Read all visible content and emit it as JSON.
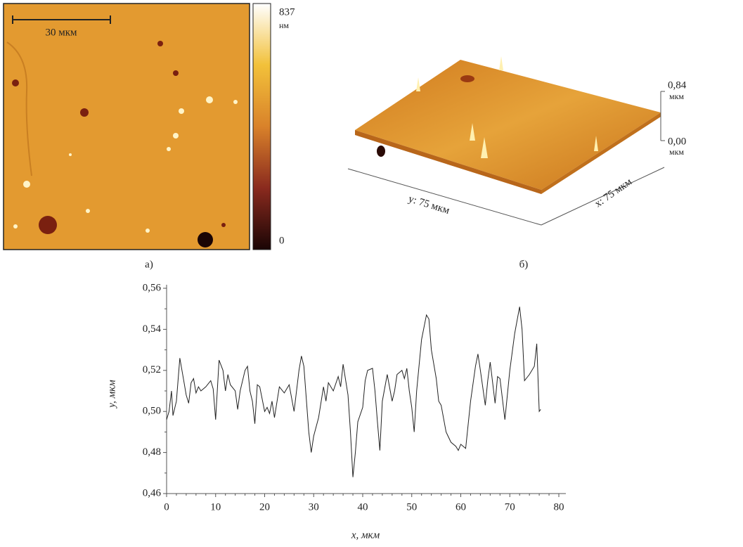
{
  "panel_a": {
    "scale_bar": "30 мкм",
    "colorbar_max": "837",
    "colorbar_unit": "нм",
    "colorbar_min": "0",
    "caption": "а)"
  },
  "panel_b": {
    "z_max": "0,84",
    "z_max_unit": "мкм",
    "z_min": "0,00",
    "z_min_unit": "мкм",
    "y_axis": "y: 75 мкм",
    "x_axis": "x: 75 мкм",
    "caption": "б)"
  },
  "chart_data": {
    "type": "line",
    "xlabel": "x, мкм",
    "ylabel": "y, мкм",
    "color": "#222222",
    "x": [
      0,
      0.5,
      1,
      1.3,
      2,
      2.7,
      3.5,
      4,
      4.5,
      5,
      5.5,
      6,
      6.5,
      7,
      8,
      9,
      9.5,
      10,
      10.7,
      11.5,
      12,
      12.5,
      13,
      14,
      14.5,
      15,
      16,
      16.5,
      17,
      17.5,
      18,
      18.5,
      19,
      20,
      20.5,
      21,
      21.5,
      22,
      23,
      24,
      25,
      26,
      27,
      27.5,
      28,
      29,
      29.5,
      30,
      31,
      32,
      32.5,
      33,
      34,
      35,
      35.5,
      36,
      37,
      37.5,
      38,
      38.5,
      39,
      40,
      40.5,
      41,
      42,
      42.5,
      43,
      43.5,
      44,
      45,
      46,
      46.5,
      47,
      48,
      48.5,
      49,
      49.5,
      50,
      50.5,
      51,
      52,
      53,
      53.5,
      54,
      55,
      55.5,
      56,
      57,
      58,
      59,
      59.5,
      60,
      61,
      62,
      63,
      63.5,
      64,
      65,
      65.5,
      66,
      67,
      67.5,
      68,
      69,
      70,
      71,
      72,
      72.5,
      73,
      74,
      75,
      75.5,
      76,
      76.3
    ],
    "values": [
      0.496,
      0.5,
      0.51,
      0.498,
      0.505,
      0.526,
      0.515,
      0.508,
      0.504,
      0.514,
      0.516,
      0.509,
      0.512,
      0.51,
      0.512,
      0.515,
      0.511,
      0.496,
      0.525,
      0.52,
      0.51,
      0.518,
      0.513,
      0.51,
      0.501,
      0.51,
      0.52,
      0.522,
      0.51,
      0.505,
      0.494,
      0.513,
      0.512,
      0.5,
      0.502,
      0.499,
      0.505,
      0.497,
      0.512,
      0.509,
      0.513,
      0.5,
      0.52,
      0.527,
      0.522,
      0.49,
      0.48,
      0.488,
      0.497,
      0.512,
      0.505,
      0.514,
      0.51,
      0.517,
      0.512,
      0.523,
      0.508,
      0.49,
      0.468,
      0.48,
      0.495,
      0.502,
      0.515,
      0.52,
      0.521,
      0.51,
      0.495,
      0.481,
      0.505,
      0.518,
      0.505,
      0.51,
      0.518,
      0.52,
      0.516,
      0.521,
      0.51,
      0.502,
      0.49,
      0.51,
      0.535,
      0.547,
      0.545,
      0.53,
      0.516,
      0.505,
      0.503,
      0.49,
      0.485,
      0.483,
      0.481,
      0.484,
      0.482,
      0.505,
      0.522,
      0.528,
      0.52,
      0.503,
      0.515,
      0.524,
      0.504,
      0.517,
      0.516,
      0.496,
      0.52,
      0.538,
      0.551,
      0.54,
      0.515,
      0.518,
      0.522,
      0.533,
      0.5,
      0.501
    ],
    "xlim": [
      0,
      80
    ],
    "ylim": [
      0.46,
      0.56
    ],
    "xticks": [
      0,
      10,
      20,
      30,
      40,
      50,
      60,
      70,
      80
    ],
    "yticks": [
      {
        "value": 0.46,
        "label": "0,46"
      },
      {
        "value": 0.48,
        "label": "0,48"
      },
      {
        "value": 0.5,
        "label": "0,50"
      },
      {
        "value": 0.52,
        "label": "0,52"
      },
      {
        "value": 0.54,
        "label": "0,54"
      },
      {
        "value": 0.56,
        "label": "0,56"
      }
    ],
    "grid": false
  }
}
